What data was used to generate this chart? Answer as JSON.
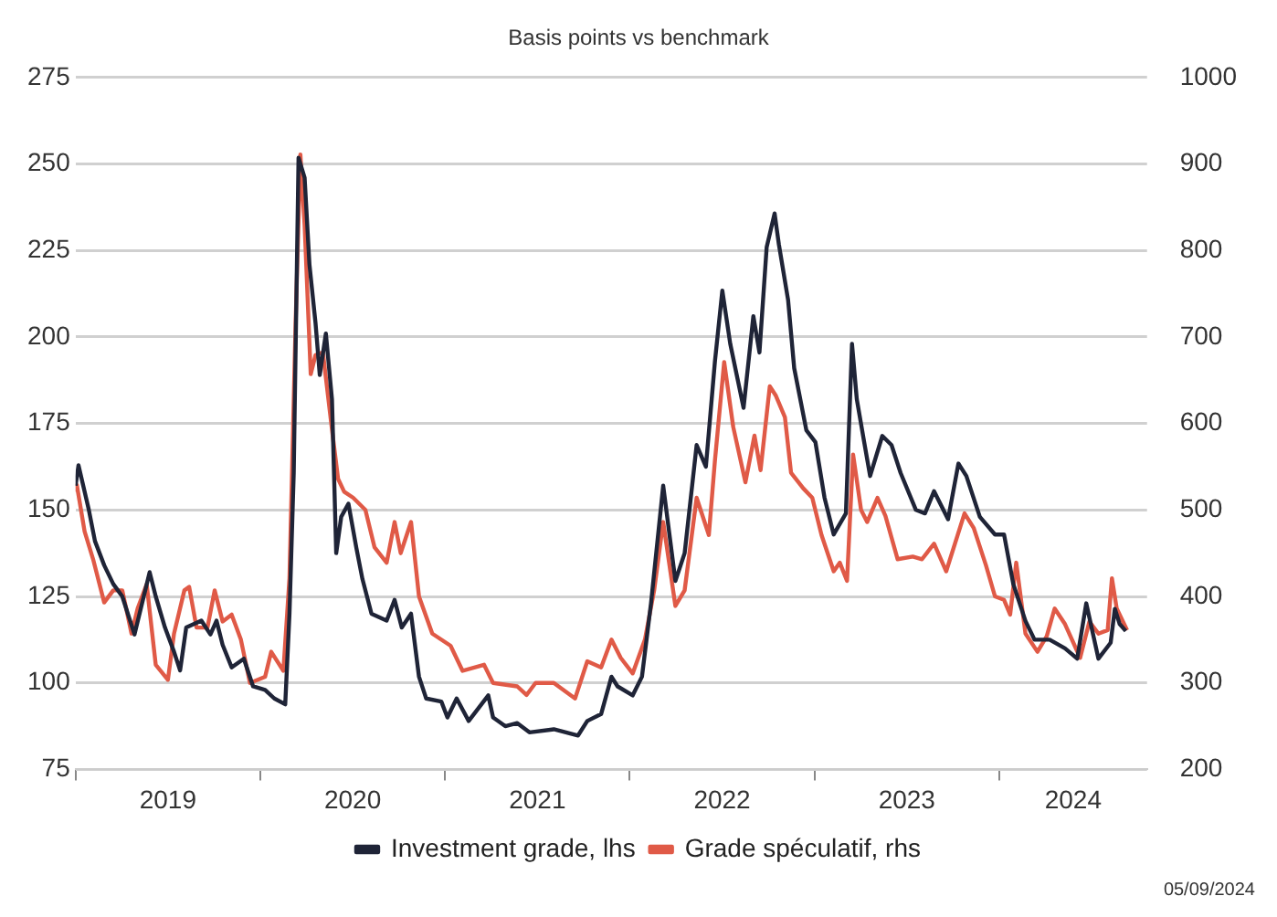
{
  "chart_data": {
    "type": "line",
    "title": "Basis points vs benchmark",
    "xlim": [
      2019,
      2024.8
    ],
    "xticks": [
      {
        "value": 2019,
        "label": null
      },
      {
        "value": 2019.5,
        "label": "2019"
      },
      {
        "value": 2020,
        "label": null
      },
      {
        "value": 2020.5,
        "label": "2020"
      },
      {
        "value": 2021,
        "label": null
      },
      {
        "value": 2021.5,
        "label": "2021"
      },
      {
        "value": 2022,
        "label": null
      },
      {
        "value": 2022.5,
        "label": "2022"
      },
      {
        "value": 2023,
        "label": null
      },
      {
        "value": 2023.5,
        "label": "2023"
      },
      {
        "value": 2024,
        "label": null
      },
      {
        "value": 2024.4,
        "label": "2024"
      }
    ],
    "ylim": [
      75,
      275
    ],
    "yticks": [
      75,
      100,
      125,
      150,
      175,
      200,
      225,
      250,
      275
    ],
    "y2lim": [
      200,
      1000
    ],
    "y2ticks": [
      200,
      300,
      400,
      500,
      600,
      700,
      800,
      900,
      1000
    ],
    "grid": "y",
    "legend": "bottom",
    "marker": "none",
    "line_style": "solid",
    "annotations": [
      "05/09/2024"
    ],
    "series": [
      {
        "name": "Investment grade, lhs",
        "color": "#1f2437",
        "x": [
          2019.0,
          2019.016,
          2019.072,
          2019.105,
          2019.155,
          2019.204,
          2019.253,
          2019.319,
          2019.401,
          2019.434,
          2019.484,
          2019.533,
          2019.566,
          2019.599,
          2019.681,
          2019.73,
          2019.763,
          2019.796,
          2019.845,
          2019.911,
          2019.961,
          2020.026,
          2020.076,
          2020.135,
          2020.158,
          2020.181,
          2020.207,
          2020.24,
          2020.266,
          2020.299,
          2020.322,
          2020.355,
          2020.388,
          2020.411,
          2020.438,
          2020.477,
          2020.52,
          2020.553,
          2020.602,
          2020.684,
          2020.727,
          2020.766,
          2020.816,
          2020.859,
          2020.898,
          2020.98,
          2021.013,
          2021.063,
          2021.128,
          2021.234,
          2021.26,
          2021.326,
          2021.391,
          2021.457,
          2021.589,
          2021.72,
          2021.77,
          2021.845,
          2021.901,
          2021.934,
          2022.016,
          2022.066,
          2022.115,
          2022.181,
          2022.247,
          2022.297,
          2022.362,
          2022.412,
          2022.461,
          2022.501,
          2022.544,
          2022.616,
          2022.669,
          2022.702,
          2022.741,
          2022.784,
          2022.807,
          2022.857,
          2022.89,
          2022.956,
          2023.005,
          2023.054,
          2023.104,
          2023.17,
          2023.203,
          2023.229,
          2023.269,
          2023.301,
          2023.367,
          2023.417,
          2023.466,
          2023.549,
          2023.598,
          2023.647,
          2023.723,
          2023.779,
          2023.822,
          2023.895,
          2023.977,
          2024.026,
          2024.076,
          2024.142,
          2024.191,
          2024.273,
          2024.356,
          2024.422,
          2024.471,
          2024.537,
          2024.603,
          2024.626,
          2024.652,
          2024.685
        ],
        "values": [
          157,
          162.9,
          150,
          141,
          134,
          128.6,
          125,
          114,
          132,
          125,
          116,
          109,
          103.6,
          116,
          118,
          114,
          118,
          111,
          104.5,
          107,
          99,
          98,
          95.5,
          93.8,
          120,
          160.7,
          251.8,
          246,
          221,
          204,
          189,
          201,
          182,
          137.5,
          148,
          151.8,
          139,
          130,
          120,
          118,
          124,
          116,
          120,
          101.8,
          95.5,
          94.6,
          90,
          95.5,
          89,
          96.4,
          90,
          87.5,
          88.4,
          85.7,
          86.6,
          84.8,
          89,
          91,
          101.8,
          99,
          96.4,
          101.8,
          123,
          157,
          129.5,
          137.5,
          168.75,
          162.5,
          192.9,
          213.4,
          198,
          179.5,
          206,
          195.5,
          225.9,
          235.7,
          226.8,
          210.7,
          191,
          173,
          169.6,
          153.6,
          142.9,
          149,
          198,
          182,
          169.6,
          159.8,
          171.4,
          168.75,
          160.7,
          150,
          149,
          155.4,
          147.3,
          163.4,
          159.8,
          148,
          142.9,
          142.9,
          128.6,
          117.9,
          112.5,
          112.5,
          110,
          107,
          123,
          107,
          111.6,
          121.4,
          117,
          115
        ]
      },
      {
        "name": "Grade spéculatif, rhs",
        "color": "#e05a47",
        "axis": "y2",
        "x": [
          2019.0,
          2019.007,
          2019.049,
          2019.095,
          2019.155,
          2019.204,
          2019.253,
          2019.303,
          2019.336,
          2019.385,
          2019.434,
          2019.5,
          2019.533,
          2019.589,
          2019.615,
          2019.655,
          2019.714,
          2019.753,
          2019.796,
          2019.845,
          2019.895,
          2019.944,
          2020.026,
          2020.059,
          2020.125,
          2020.158,
          2020.191,
          2020.217,
          2020.24,
          2020.273,
          2020.299,
          2020.339,
          2020.388,
          2020.421,
          2020.454,
          2020.503,
          2020.569,
          2020.618,
          2020.684,
          2020.727,
          2020.76,
          2020.816,
          2020.859,
          2020.931,
          2021.03,
          2021.095,
          2021.211,
          2021.26,
          2021.391,
          2021.441,
          2021.49,
          2021.589,
          2021.704,
          2021.77,
          2021.845,
          2021.901,
          2021.951,
          2022.016,
          2022.082,
          2022.132,
          2022.181,
          2022.247,
          2022.297,
          2022.362,
          2022.428,
          2022.461,
          2022.511,
          2022.56,
          2022.626,
          2022.675,
          2022.708,
          2022.758,
          2022.791,
          2022.84,
          2022.873,
          2022.939,
          2022.988,
          2023.038,
          2023.104,
          2023.137,
          2023.176,
          2023.209,
          2023.252,
          2023.285,
          2023.341,
          2023.384,
          2023.45,
          2023.532,
          2023.582,
          2023.647,
          2023.713,
          2023.812,
          2023.862,
          2023.928,
          2023.977,
          2024.026,
          2024.059,
          2024.092,
          2024.142,
          2024.207,
          2024.257,
          2024.3,
          2024.356,
          2024.438,
          2024.488,
          2024.537,
          2024.587,
          2024.61,
          2024.636,
          2024.692
        ],
        "values": [
          521,
          528.6,
          475,
          443,
          393,
          407,
          407,
          357,
          386,
          414,
          321,
          303.6,
          357,
          407,
          411,
          364,
          364,
          407,
          371,
          379,
          350,
          300,
          307,
          336,
          314,
          421,
          714,
          911,
          829,
          657,
          679,
          682,
          593,
          536,
          521,
          514,
          500,
          457,
          439,
          486,
          450,
          486,
          400,
          357,
          343,
          314,
          321,
          300,
          296,
          286,
          300,
          300,
          282,
          325,
          318,
          350,
          329,
          311,
          350,
          407,
          486,
          389,
          407,
          514,
          471,
          557,
          671,
          596,
          532,
          586,
          546,
          643,
          632,
          607,
          543,
          525,
          514,
          471,
          429,
          439,
          418,
          564,
          500,
          486,
          514,
          493,
          443,
          446,
          443,
          461,
          429,
          496,
          479,
          436,
          400,
          396,
          379,
          439,
          357,
          336,
          354,
          386,
          368,
          329,
          371,
          357,
          361,
          421,
          386,
          361
        ]
      }
    ]
  }
}
